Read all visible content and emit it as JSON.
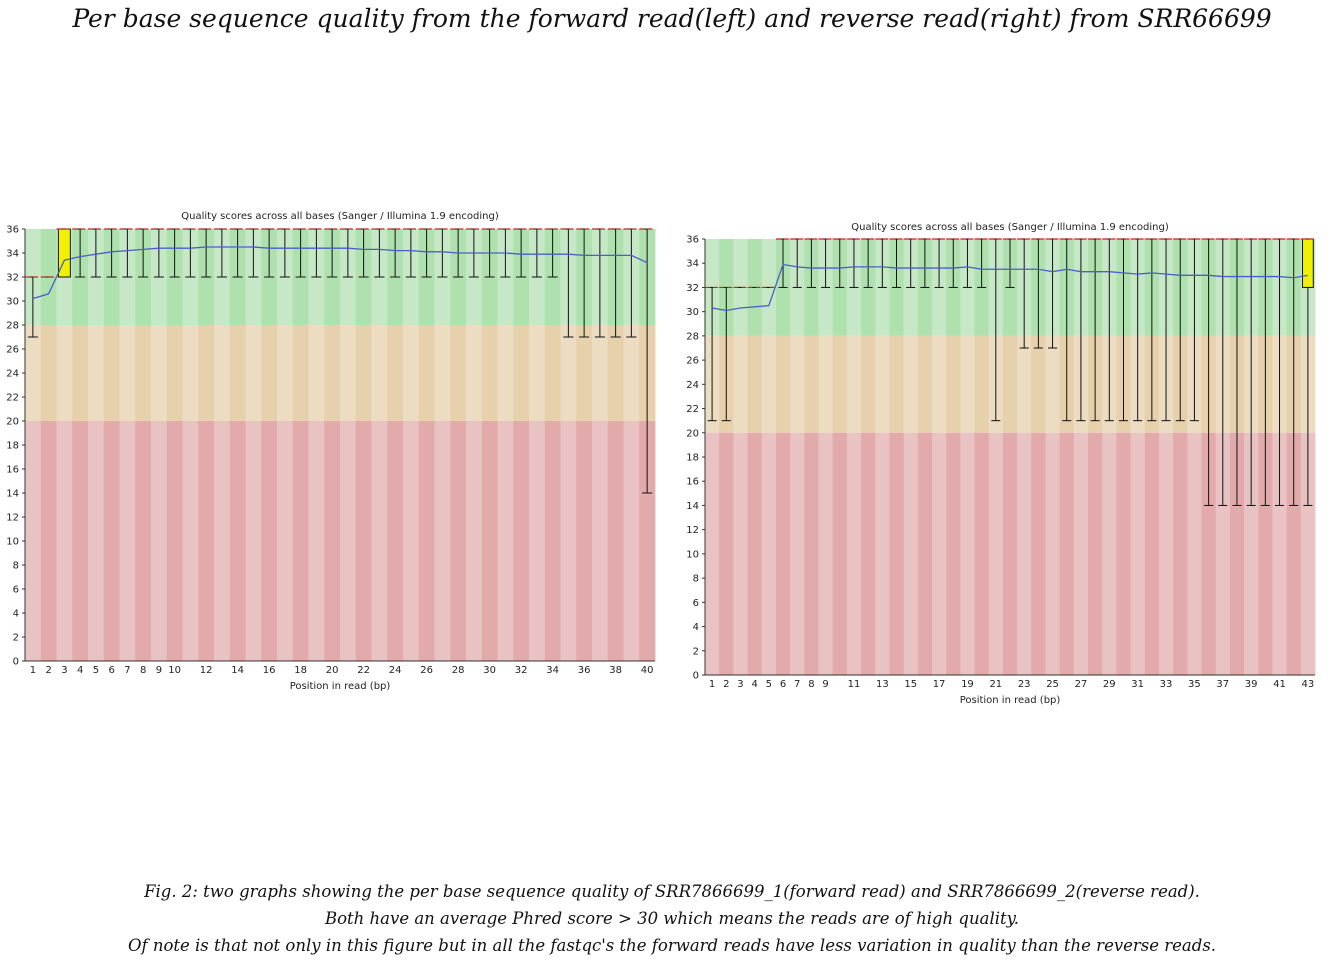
{
  "title": "Per base sequence quality from the forward read(left) and reverse read(right) from SRR66699",
  "caption": {
    "line1": "Fig. 2: two graphs showing the per base sequence quality of SRR7866699_1(forward read) and SRR7866699_2(reverse read).",
    "line2": "Both have an average Phred score > 30 which means the reads are of high quality.",
    "line3": "Of note is that not only in this figure but in all the fastqc's the forward reads have less variation in quality than the reverse reads."
  },
  "colors": {
    "good_light": "#c6e8c6",
    "good_dark": "#afe1af",
    "warn_light": "#ecdcc2",
    "warn_dark": "#e6d1ac",
    "bad_light": "#e9c3c3",
    "bad_dark": "#e2aaaa",
    "box": "#f0f000",
    "mean_line": "#4a5fc8",
    "median": "#d42020"
  },
  "chart_data": [
    {
      "type": "box",
      "title": "Quality scores across all bases (Sanger / Illumina 1.9 encoding)",
      "xlabel": "Position in read (bp)",
      "ylim": [
        0,
        36
      ],
      "yticks": [
        0,
        2,
        4,
        6,
        8,
        10,
        12,
        14,
        16,
        18,
        20,
        22,
        24,
        26,
        28,
        30,
        32,
        34,
        36
      ],
      "xtick_labels": [
        "1",
        "2",
        "3",
        "4",
        "5",
        "6",
        "7",
        "8",
        "9",
        "10",
        "12",
        "14",
        "16",
        "18",
        "20",
        "22",
        "24",
        "26",
        "28",
        "30",
        "32",
        "34",
        "36",
        "38",
        "40"
      ],
      "categories": [
        "1",
        "2",
        "3",
        "4",
        "5",
        "6",
        "7",
        "8",
        "9",
        "10",
        "11",
        "12",
        "13",
        "14",
        "15",
        "16",
        "17",
        "18",
        "19",
        "20",
        "21",
        "22",
        "23",
        "24",
        "25",
        "26",
        "27",
        "28",
        "29",
        "30",
        "31",
        "32",
        "33",
        "34",
        "35",
        "36",
        "37",
        "38",
        "39",
        "40"
      ],
      "mean": [
        30.2,
        30.6,
        33.4,
        33.7,
        33.9,
        34.1,
        34.2,
        34.3,
        34.4,
        34.4,
        34.4,
        34.5,
        34.5,
        34.5,
        34.5,
        34.4,
        34.4,
        34.4,
        34.4,
        34.4,
        34.4,
        34.3,
        34.3,
        34.2,
        34.2,
        34.1,
        34.1,
        34.0,
        34.0,
        34.0,
        34.0,
        33.9,
        33.9,
        33.9,
        33.9,
        33.8,
        33.8,
        33.8,
        33.8,
        33.2
      ],
      "median": [
        32,
        32,
        36,
        36,
        36,
        36,
        36,
        36,
        36,
        36,
        36,
        36,
        36,
        36,
        36,
        36,
        36,
        36,
        36,
        36,
        36,
        36,
        36,
        36,
        36,
        36,
        36,
        36,
        36,
        36,
        36,
        36,
        36,
        36,
        36,
        36,
        36,
        36,
        36,
        36
      ],
      "q1": [
        32,
        32,
        32,
        36,
        36,
        36,
        36,
        36,
        36,
        36,
        36,
        36,
        36,
        36,
        36,
        36,
        36,
        36,
        36,
        36,
        36,
        36,
        36,
        36,
        36,
        36,
        36,
        36,
        36,
        36,
        36,
        36,
        36,
        36,
        36,
        36,
        36,
        36,
        36,
        36
      ],
      "q3": [
        32,
        32,
        36,
        36,
        36,
        36,
        36,
        36,
        36,
        36,
        36,
        36,
        36,
        36,
        36,
        36,
        36,
        36,
        36,
        36,
        36,
        36,
        36,
        36,
        36,
        36,
        36,
        36,
        36,
        36,
        36,
        36,
        36,
        36,
        36,
        36,
        36,
        36,
        36,
        36
      ],
      "whisker_low": [
        27,
        32,
        32,
        32,
        32,
        32,
        32,
        32,
        32,
        32,
        32,
        32,
        32,
        32,
        32,
        32,
        32,
        32,
        32,
        32,
        32,
        32,
        32,
        32,
        32,
        32,
        32,
        32,
        32,
        32,
        32,
        32,
        32,
        32,
        27,
        27,
        27,
        27,
        27,
        14
      ],
      "whisker_high": [
        32,
        32,
        36,
        36,
        36,
        36,
        36,
        36,
        36,
        36,
        36,
        36,
        36,
        36,
        36,
        36,
        36,
        36,
        36,
        36,
        36,
        36,
        36,
        36,
        36,
        36,
        36,
        36,
        36,
        36,
        36,
        36,
        36,
        36,
        36,
        36,
        36,
        36,
        36,
        36
      ]
    },
    {
      "type": "box",
      "title": "Quality scores across all bases (Sanger / Illumina 1.9 encoding)",
      "xlabel": "Position in read (bp)",
      "ylim": [
        0,
        36
      ],
      "yticks": [
        0,
        2,
        4,
        6,
        8,
        10,
        12,
        14,
        16,
        18,
        20,
        22,
        24,
        26,
        28,
        30,
        32,
        34,
        36
      ],
      "xtick_labels": [
        "1",
        "2",
        "3",
        "4",
        "5",
        "6",
        "7",
        "8",
        "9",
        "11",
        "13",
        "15",
        "17",
        "19",
        "21",
        "23",
        "25",
        "27",
        "29",
        "31",
        "33",
        "35",
        "37",
        "39",
        "41",
        "43"
      ],
      "categories": [
        "1",
        "2",
        "3",
        "4",
        "5",
        "6",
        "7",
        "8",
        "9",
        "10",
        "11",
        "12",
        "13",
        "14",
        "15",
        "16",
        "17",
        "18",
        "19",
        "20",
        "21",
        "22",
        "23",
        "24",
        "25",
        "26",
        "27",
        "28",
        "29",
        "30",
        "31",
        "32",
        "33",
        "34",
        "35",
        "36",
        "37",
        "38",
        "39",
        "40",
        "41",
        "42",
        "43"
      ],
      "mean": [
        30.3,
        30.1,
        30.3,
        30.4,
        30.5,
        33.9,
        33.7,
        33.6,
        33.6,
        33.6,
        33.7,
        33.7,
        33.7,
        33.6,
        33.6,
        33.6,
        33.6,
        33.6,
        33.7,
        33.5,
        33.5,
        33.5,
        33.5,
        33.5,
        33.3,
        33.5,
        33.3,
        33.3,
        33.3,
        33.2,
        33.1,
        33.2,
        33.1,
        33.0,
        33.0,
        33.0,
        32.9,
        32.9,
        32.9,
        32.9,
        32.9,
        32.8,
        33.0
      ],
      "median": [
        32,
        32,
        32,
        32,
        32,
        36,
        36,
        36,
        36,
        36,
        36,
        36,
        36,
        36,
        36,
        36,
        36,
        36,
        36,
        36,
        36,
        36,
        36,
        36,
        36,
        36,
        36,
        36,
        36,
        36,
        36,
        36,
        36,
        36,
        36,
        36,
        36,
        36,
        36,
        36,
        36,
        36,
        36
      ],
      "q1": [
        32,
        32,
        32,
        32,
        32,
        36,
        36,
        36,
        36,
        36,
        36,
        36,
        36,
        36,
        36,
        36,
        36,
        36,
        36,
        36,
        36,
        36,
        36,
        36,
        36,
        36,
        36,
        36,
        36,
        36,
        36,
        36,
        36,
        36,
        36,
        36,
        36,
        36,
        36,
        36,
        36,
        36,
        32
      ],
      "q3": [
        32,
        32,
        32,
        32,
        32,
        36,
        36,
        36,
        36,
        36,
        36,
        36,
        36,
        36,
        36,
        36,
        36,
        36,
        36,
        36,
        36,
        36,
        36,
        36,
        36,
        36,
        36,
        36,
        36,
        36,
        36,
        36,
        36,
        36,
        36,
        36,
        36,
        36,
        36,
        36,
        36,
        36,
        36
      ],
      "whisker_low": [
        21,
        21,
        32,
        32,
        32,
        32,
        32,
        32,
        32,
        32,
        32,
        32,
        32,
        32,
        32,
        32,
        32,
        32,
        32,
        32,
        21,
        32,
        27,
        27,
        27,
        21,
        21,
        21,
        21,
        21,
        21,
        21,
        21,
        21,
        21,
        14,
        14,
        14,
        14,
        14,
        14,
        14,
        14
      ],
      "whisker_high": [
        32,
        32,
        32,
        32,
        32,
        36,
        36,
        36,
        36,
        36,
        36,
        36,
        36,
        36,
        36,
        36,
        36,
        36,
        36,
        36,
        36,
        36,
        36,
        36,
        36,
        36,
        36,
        36,
        36,
        36,
        36,
        36,
        36,
        36,
        36,
        36,
        36,
        36,
        36,
        36,
        36,
        36,
        36
      ]
    }
  ]
}
